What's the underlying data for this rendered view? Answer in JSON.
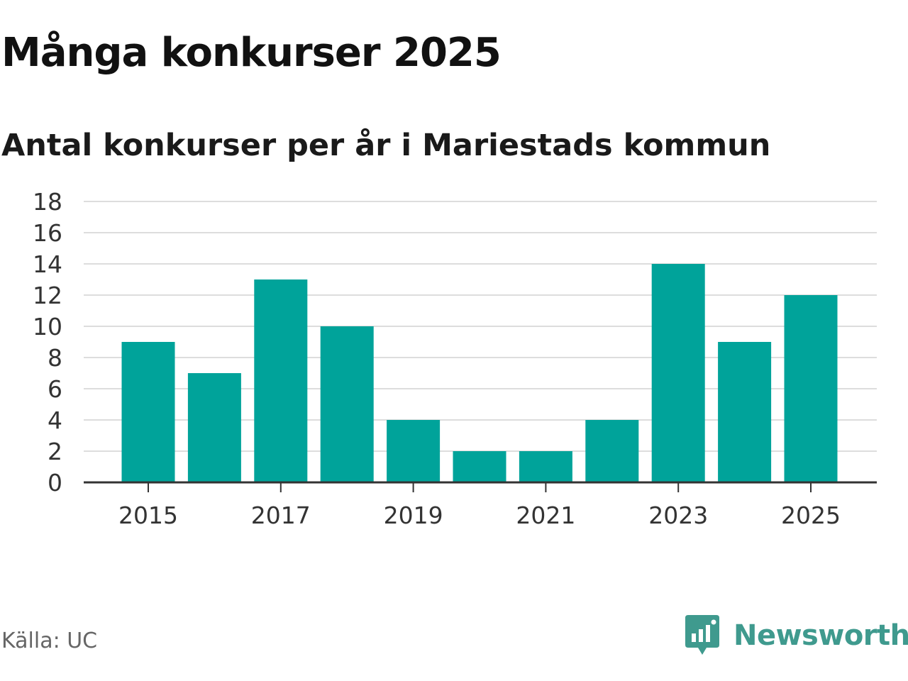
{
  "title": "Många konkurser 2025",
  "subtitle": "Antal konkurser per år i Mariestads kommun",
  "source": "Källa: UC",
  "brand": {
    "name": "Newsworthy",
    "icon": "newsworthy-logo-icon"
  },
  "colors": {
    "bar": "#00a39a",
    "grid": "#dddddd",
    "axis": "#333333",
    "brand": "#3f9a8e"
  },
  "chart_data": {
    "type": "bar",
    "categories": [
      "2015",
      "2016",
      "2017",
      "2018",
      "2019",
      "2020",
      "2021",
      "2022",
      "2023",
      "2024",
      "2025"
    ],
    "values": [
      9,
      7,
      13,
      10,
      4,
      2,
      2,
      4,
      14,
      9,
      12
    ],
    "x_tick_labels": [
      "2015",
      "2017",
      "2019",
      "2021",
      "2023",
      "2025"
    ],
    "y_ticks": [
      0,
      2,
      4,
      6,
      8,
      10,
      12,
      14,
      16,
      18
    ],
    "ylim": [
      0,
      18
    ],
    "grid": true,
    "legend": "none",
    "title": "Många konkurser 2025",
    "subtitle": "Antal konkurser per år i Mariestads kommun",
    "xlabel": "",
    "ylabel": ""
  }
}
